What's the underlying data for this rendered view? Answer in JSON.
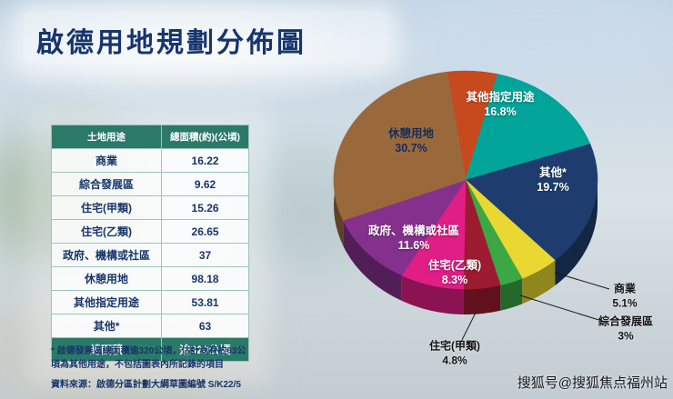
{
  "title": "啟德用地規劃分佈圖",
  "table": {
    "headers": [
      "土地用途",
      "總面積(約)(公頃)"
    ],
    "rows": [
      [
        "商業",
        "16.22"
      ],
      [
        "綜合發展區",
        "9.62"
      ],
      [
        "住宅(甲類)",
        "15.26"
      ],
      [
        "住宅(乙類)",
        "26.65"
      ],
      [
        "政府、機構或社區",
        "37"
      ],
      [
        "休憩用地",
        "98.18"
      ],
      [
        "其他指定用途",
        "53.81"
      ],
      [
        "其他*",
        "63"
      ]
    ],
    "total_row": [
      "總面積",
      "逾320公頃"
    ]
  },
  "footnote": "* 啟德發展區總面積逾320公頃，估計尚有約63公頃為其他用途，不包括圖表內所記錄的項目",
  "source": "資料來源：啟德分區計劃大綱草圖編號 S/K22/5",
  "watermark": "搜狐号@搜狐焦点福州站",
  "chart_data": {
    "type": "pie",
    "title": "啟德用地規劃分佈圖",
    "total_label": "總面積 逾320公頃",
    "slices": [
      {
        "name": "unlabeled-red",
        "label": "",
        "pct": null,
        "pct_label": "",
        "sweep": 6.5,
        "color": "#c64a1e"
      },
      {
        "name": "other-specified-uses",
        "label": "其他指定用途",
        "pct": 16.8,
        "pct_label": "16.8%",
        "sweep": 16.8,
        "color": "#00a499"
      },
      {
        "name": "others",
        "label": "其他*",
        "pct": 19.7,
        "pct_label": "19.7%",
        "sweep": 19.7,
        "color": "#1e3d6e"
      },
      {
        "name": "commercial",
        "label": "商業",
        "pct": 5.1,
        "pct_label": "5.1%",
        "sweep": 5.1,
        "color": "#e8d831"
      },
      {
        "name": "comprehensive-development-area",
        "label": "綜合發展區",
        "pct": 3,
        "pct_label": "3%",
        "sweep": 3,
        "color": "#3ca745"
      },
      {
        "name": "residential-a",
        "label": "住宅(甲類)",
        "pct": 4.8,
        "pct_label": "4.8%",
        "sweep": 4.8,
        "color": "#9c1b31"
      },
      {
        "name": "residential-b",
        "label": "住宅(乙類)",
        "pct": 8.3,
        "pct_label": "8.3%",
        "sweep": 8.3,
        "color": "#e01e86"
      },
      {
        "name": "government-institution-community",
        "label": "政府、機構或社區",
        "pct": 11.6,
        "pct_label": "11.6%",
        "sweep": 11.6,
        "color": "#85308d"
      },
      {
        "name": "open-space",
        "label": "休憩用地",
        "pct": 30.7,
        "pct_label": "30.7%",
        "sweep": 30.7,
        "color": "#99693c",
        "wall_until": 305
      }
    ]
  }
}
